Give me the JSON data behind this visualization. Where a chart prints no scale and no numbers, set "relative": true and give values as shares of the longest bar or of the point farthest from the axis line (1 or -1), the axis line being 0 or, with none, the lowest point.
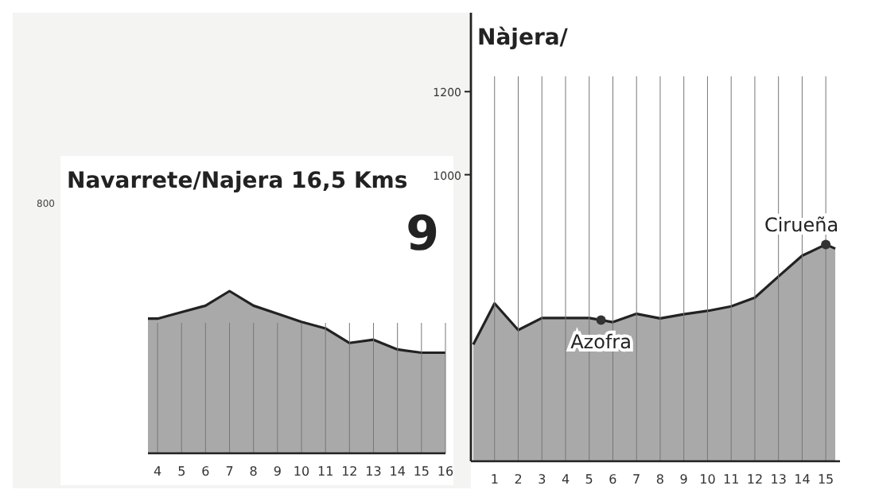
{
  "chart_data": [
    {
      "type": "area",
      "title": "Navarrete/Najera 16,5 Kms",
      "relative": true,
      "grid": "x",
      "x": [
        3.6,
        4,
        5,
        6,
        7,
        8,
        9,
        10,
        11,
        12,
        13,
        14,
        15,
        16
      ],
      "series": [
        {
          "color": "#a9a9a9",
          "values": [
            0.83,
            0.83,
            0.87,
            0.91,
            1,
            0.91,
            0.86,
            0.81,
            0.77,
            0.68,
            0.7,
            0.64,
            0.62,
            0.62
          ]
        }
      ],
      "xlim": [
        3.6,
        16
      ],
      "xticks": [
        4,
        5,
        6,
        7,
        8,
        9,
        10,
        11,
        12,
        13,
        14,
        15,
        16
      ],
      "annotations": [
        "9",
        "800"
      ]
    },
    {
      "type": "area",
      "title": "Nàjera/",
      "grid": "x",
      "x": [
        0.1,
        1,
        2,
        3,
        4,
        5,
        6,
        7,
        8,
        9,
        10,
        11,
        12,
        13,
        14,
        15,
        15.4
      ],
      "series": [
        {
          "color": "#a9a9a9",
          "values": [
            591,
            690,
            626,
            655,
            655,
            655,
            645,
            665,
            654,
            664,
            672,
            683,
            704,
            755,
            805,
            832,
            822
          ]
        }
      ],
      "xlim": [
        0,
        15.6
      ],
      "xticks": [
        1,
        2,
        3,
        4,
        5,
        6,
        7,
        8,
        9,
        10,
        11,
        12,
        13,
        14,
        15
      ],
      "ylim": [
        310,
        1390
      ],
      "yticks": [
        1000,
        1200
      ],
      "annotations": [
        {
          "text": "Azofra",
          "x": 5.5,
          "y": 650
        },
        {
          "text": "Cirueña",
          "x": 15,
          "y": 832
        }
      ]
    }
  ]
}
